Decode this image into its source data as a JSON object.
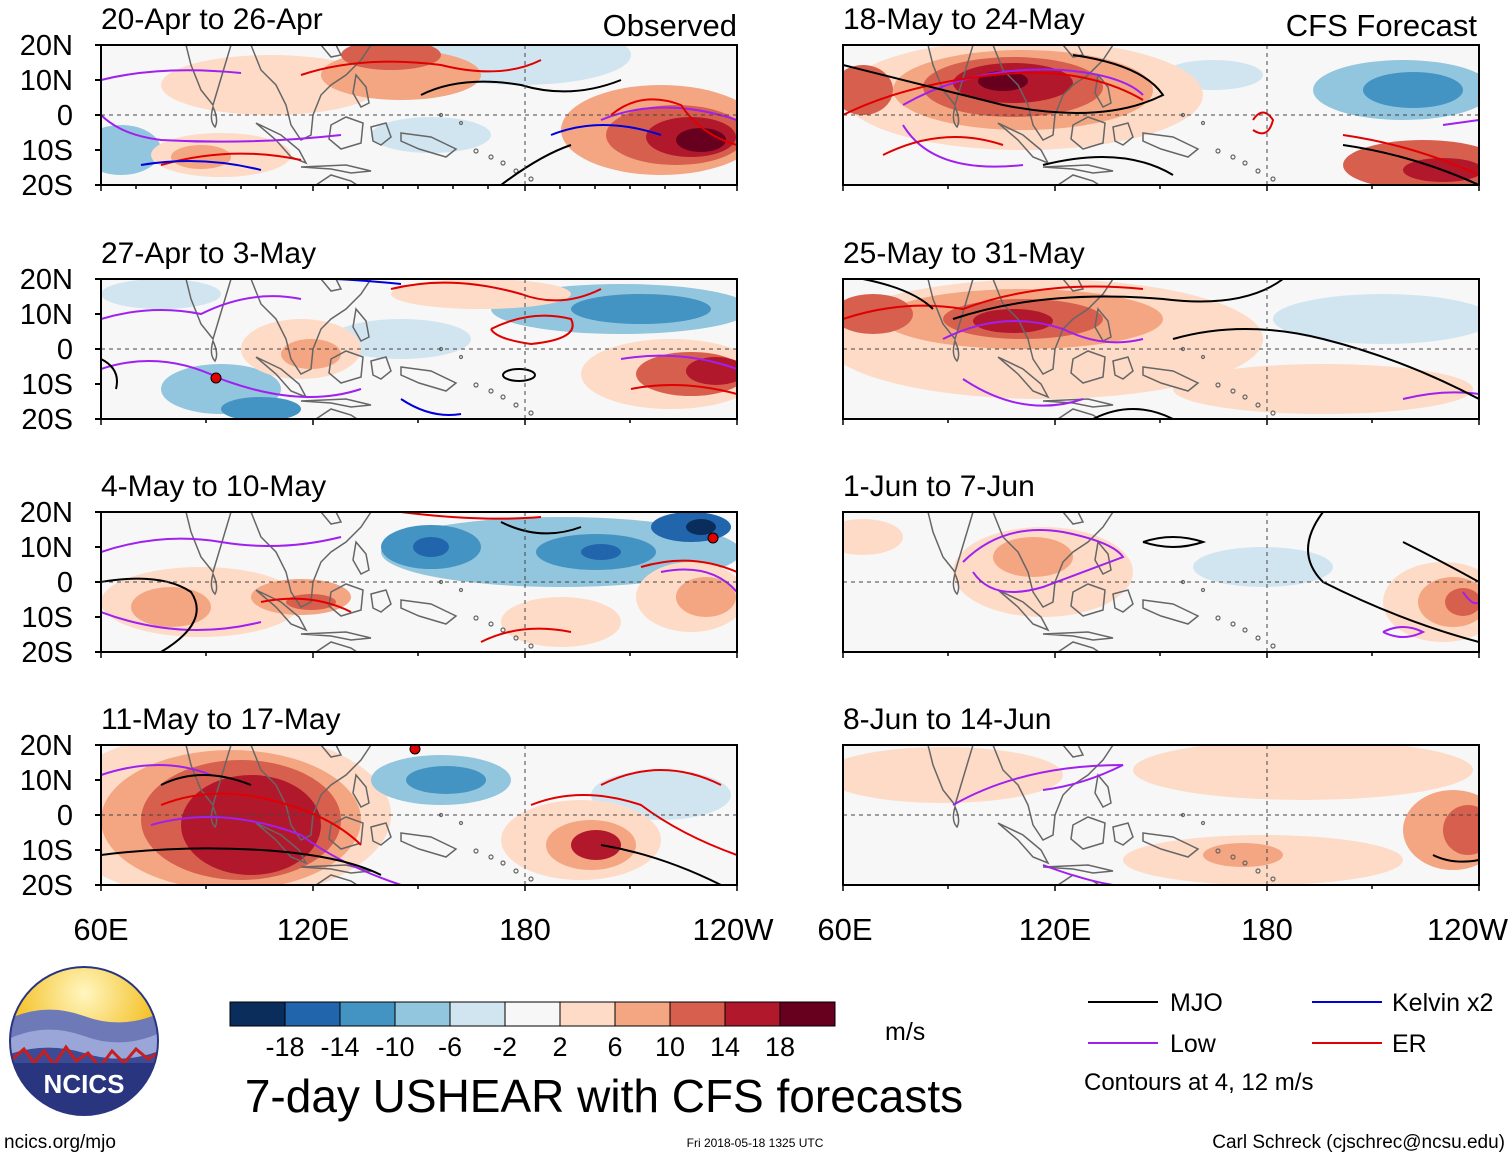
{
  "figure": {
    "title": "7-day USHEAR with CFS forecasts",
    "source_url": "ncics.org/mjo",
    "timestamp": "Fri 2018-05-18 1325 UTC",
    "credit": "Carl Schreck (cjschrec@ncsu.edu)",
    "logo_text": "NCICS"
  },
  "columns": {
    "left_label": "Observed",
    "right_label": "CFS Forecast"
  },
  "axes": {
    "lat_ticks": [
      "20N",
      "10N",
      "0",
      "10S",
      "20S"
    ],
    "lon_ticks": [
      "60E",
      "120E",
      "180",
      "120W"
    ]
  },
  "panels": {
    "observed": [
      {
        "period": "20-Apr to 26-Apr"
      },
      {
        "period": "27-Apr to 3-May"
      },
      {
        "period": "4-May to 10-May"
      },
      {
        "period": "11-May to 17-May"
      }
    ],
    "forecast": [
      {
        "period": "18-May to 24-May"
      },
      {
        "period": "25-May to 31-May"
      },
      {
        "period": "1-Jun to 7-Jun"
      },
      {
        "period": "8-Jun to 14-Jun"
      }
    ]
  },
  "colorbar": {
    "units": "m/s",
    "tick_labels": [
      "-18",
      "-14",
      "-10",
      "-6",
      "-2",
      "2",
      "6",
      "10",
      "14",
      "18"
    ],
    "colors": [
      "#0b2d5c",
      "#2166ac",
      "#4393c3",
      "#92c5de",
      "#d1e5f0",
      "#f7f7f7",
      "#fddbc7",
      "#f4a582",
      "#d6604d",
      "#b2182b",
      "#67001f"
    ]
  },
  "legend": {
    "items": [
      {
        "label": "MJO",
        "color": "#000000"
      },
      {
        "label": "Kelvin x2",
        "color": "#0000dd"
      },
      {
        "label": "Low",
        "color": "#a020f0"
      },
      {
        "label": "ER",
        "color": "#e00000"
      }
    ],
    "note": "Contours at 4, 12 m/s"
  }
}
